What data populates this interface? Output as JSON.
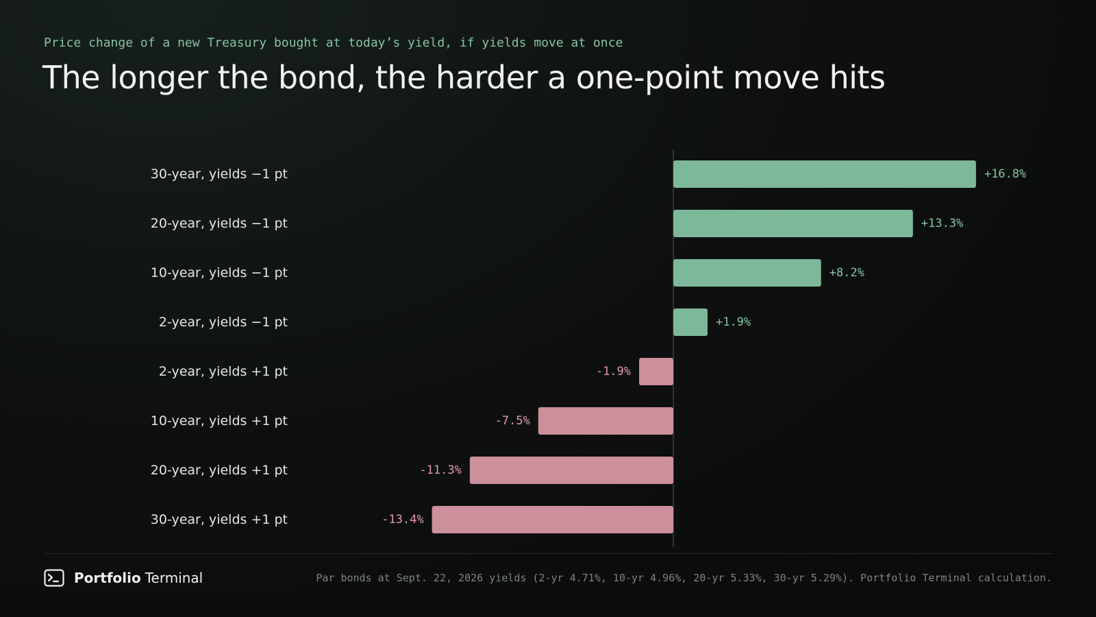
{
  "header": {
    "kicker": "Price change of a new Treasury bought at today’s yield, if yields move at once",
    "title": "The longer the bond, the harder a one-point move hits"
  },
  "chart_data": {
    "type": "bar",
    "orientation": "horizontal",
    "categories": [
      "30-year, yields −1 pt",
      "20-year, yields −1 pt",
      "10-year, yields −1 pt",
      "2-year, yields −1 pt",
      "2-year, yields +1 pt",
      "10-year, yields +1 pt",
      "20-year, yields +1 pt",
      "30-year, yields +1 pt"
    ],
    "values": [
      16.8,
      13.3,
      8.2,
      1.9,
      -1.9,
      -7.5,
      -11.3,
      -13.4
    ],
    "value_labels": [
      "+16.8%",
      "+13.3%",
      "+8.2%",
      "+1.9%",
      "-1.9%",
      "-7.5%",
      "-11.3%",
      "-13.4%"
    ],
    "title": "The longer the bond, the harder a one-point move hits",
    "subtitle": "Price change of a new Treasury bought at today’s yield, if yields move at once",
    "xlabel": "",
    "ylabel": "",
    "xlim": [
      -18,
      20
    ],
    "grid": false,
    "legend": "none",
    "colors": {
      "positive": "#7db89a",
      "negative": "#cc8f9c",
      "positive_label": "#84c5a0",
      "negative_label": "#e39aa8",
      "axis": "#3a3f3d"
    }
  },
  "footer": {
    "brand_bold": "Portfolio",
    "brand_light": "Terminal",
    "brand_icon": "terminal-prompt-icon",
    "source": "Par bonds at Sept. 22, 2026 yields (2-yr 4.71%, 10-yr 4.96%, 20-yr 5.33%, 30-yr 5.29%). Portfolio Terminal calculation."
  }
}
